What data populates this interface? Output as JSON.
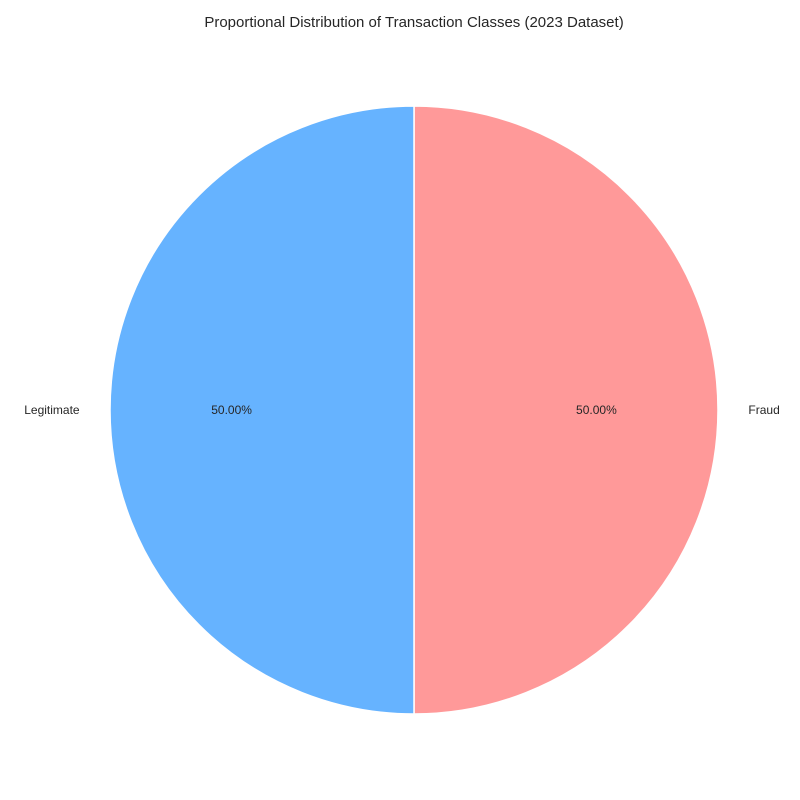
{
  "chart_data": {
    "type": "pie",
    "title": "Proportional Distribution of Transaction Classes (2023 Dataset)",
    "categories": [
      "Fraud",
      "Legitimate"
    ],
    "values": [
      50.0,
      50.0
    ],
    "percent_labels": [
      "50.00%",
      "50.00%"
    ],
    "colors": [
      "#ff9999",
      "#66b3ff"
    ],
    "edge_color": "#ffffff",
    "start_angle_deg": 90,
    "direction": "clockwise",
    "legend": "none"
  }
}
